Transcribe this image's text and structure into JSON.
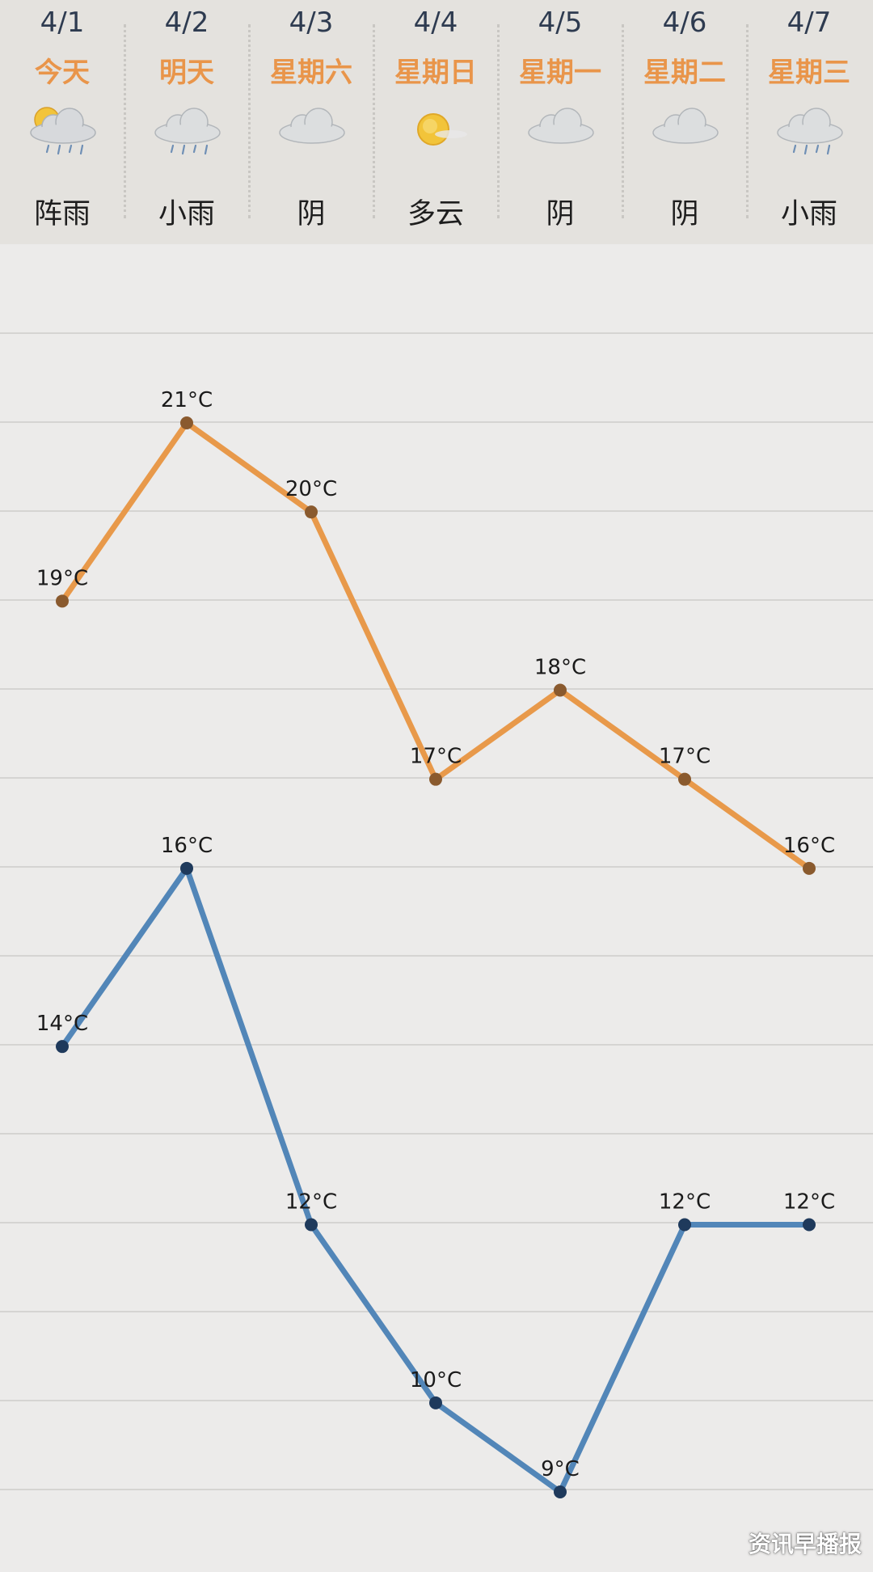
{
  "days": [
    {
      "date": "4/1",
      "weekday": "今天",
      "condition": "阵雨",
      "icon": "shower-icon"
    },
    {
      "date": "4/2",
      "weekday": "明天",
      "condition": "小雨",
      "icon": "light-rain-icon"
    },
    {
      "date": "4/3",
      "weekday": "星期六",
      "condition": "阴",
      "icon": "overcast-icon"
    },
    {
      "date": "4/4",
      "weekday": "星期日",
      "condition": "多云",
      "icon": "sunny-icon"
    },
    {
      "date": "4/5",
      "weekday": "星期一",
      "condition": "阴",
      "icon": "overcast-icon"
    },
    {
      "date": "4/6",
      "weekday": "星期二",
      "condition": "阴",
      "icon": "overcast-icon"
    },
    {
      "date": "4/7",
      "weekday": "星期三",
      "condition": "小雨",
      "icon": "light-rain-icon"
    }
  ],
  "colors": {
    "weekday": "#e9954a",
    "high_line": "#e8994a",
    "high_dot": "#8a5a2e",
    "low_line": "#5286b8",
    "low_dot": "#1f3a5c"
  },
  "chart_data": {
    "type": "line",
    "categories": [
      "4/1",
      "4/2",
      "4/3",
      "4/4",
      "4/5",
      "4/6",
      "4/7"
    ],
    "series": [
      {
        "key": "high",
        "values": [
          19,
          21,
          20,
          17,
          18,
          17,
          16
        ]
      },
      {
        "key": "low",
        "values": [
          14,
          16,
          12,
          10,
          9,
          12,
          12
        ]
      }
    ],
    "unit": "°C",
    "ylim": [
      8.5,
      22
    ]
  },
  "watermark": "资讯早播报"
}
